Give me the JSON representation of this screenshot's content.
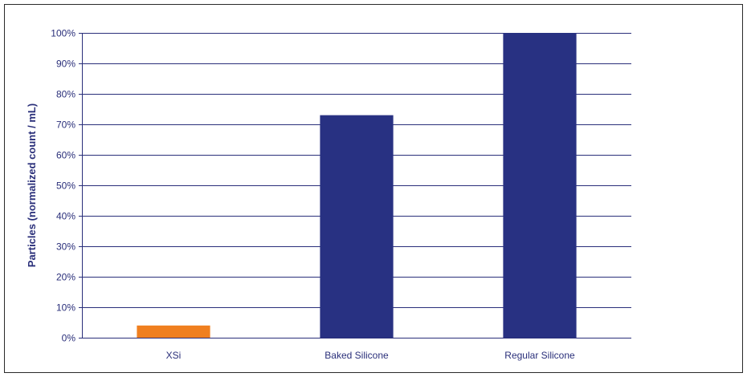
{
  "chart_data": {
    "type": "bar",
    "title": "",
    "xlabel": "",
    "ylabel": "Particles (normalized count / mL)",
    "categories": [
      "XSi",
      "Baked Silicone",
      "Regular Silicone"
    ],
    "values": [
      4,
      73,
      100
    ],
    "bar_colors": [
      "#f07f1f",
      "#283182",
      "#283182"
    ],
    "ylim": [
      0,
      100
    ],
    "y_ticks": [
      0,
      10,
      20,
      30,
      40,
      50,
      60,
      70,
      80,
      90,
      100
    ],
    "y_tick_labels": [
      "0%",
      "10%",
      "20%",
      "30%",
      "40%",
      "50%",
      "60%",
      "70%",
      "80%",
      "90%",
      "100%"
    ],
    "grid": true,
    "legend": false,
    "colors": {
      "frame": "#2a2a2a",
      "axis": "#2a2f7a",
      "grid": "#2a2f7a",
      "text": "#2a2f7a"
    }
  }
}
